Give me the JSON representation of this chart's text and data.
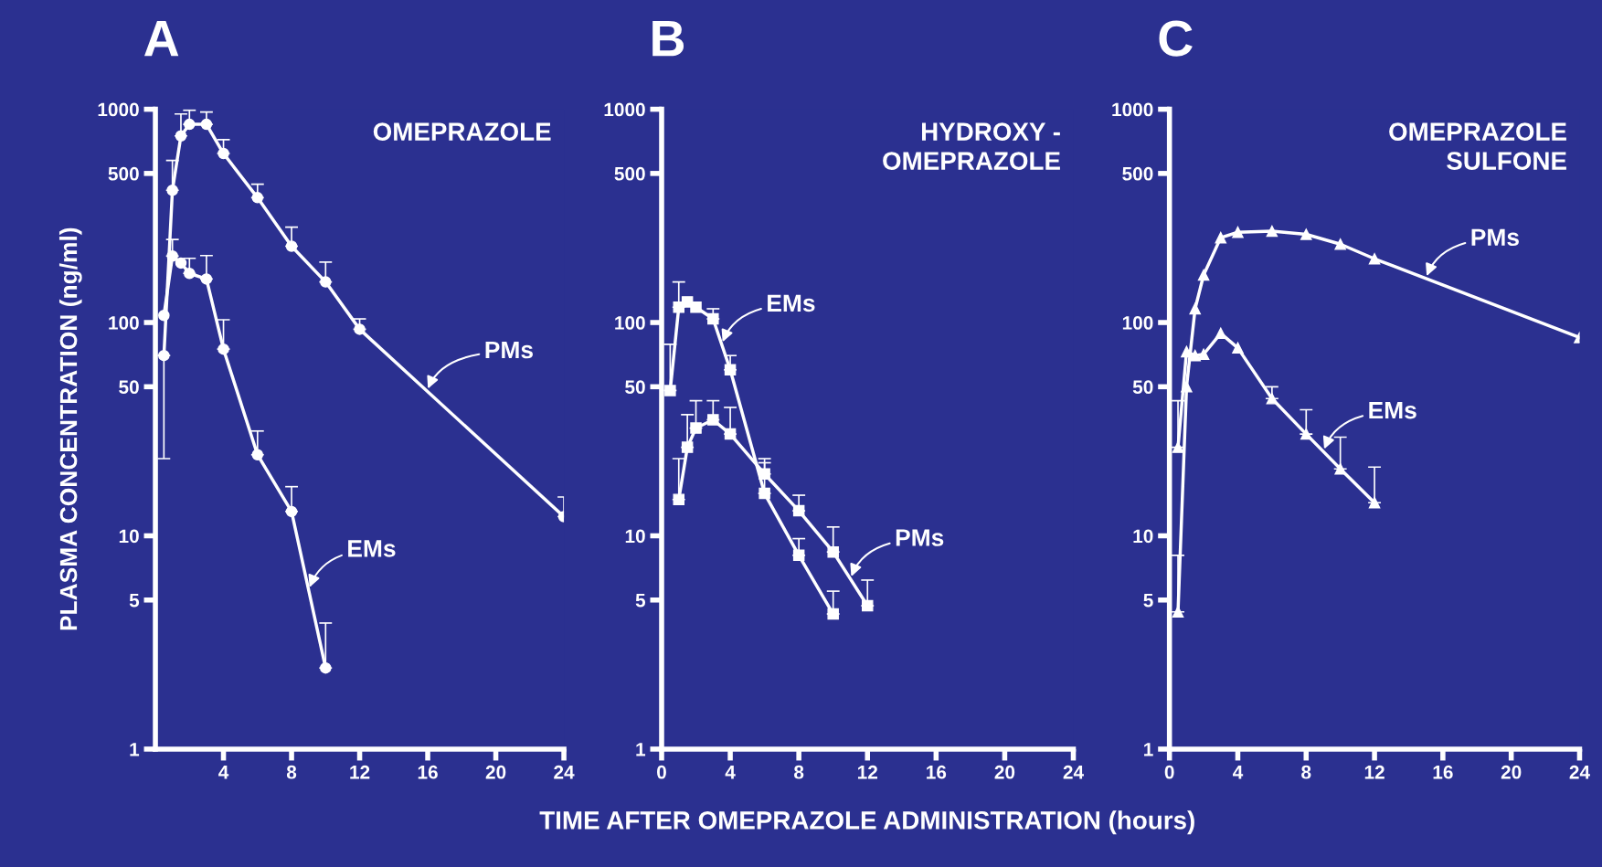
{
  "chart_data": [
    {
      "type": "line",
      "title": "A",
      "subtitle": "OMEPRAZOLE",
      "ylabel": "PLASMA CONCENTRATION (ng/ml)",
      "log": "y",
      "xlim": [
        0,
        24
      ],
      "xticks": [
        4,
        8,
        12,
        16,
        20,
        24
      ],
      "ylim": [
        1,
        1000
      ],
      "yticks": [
        1,
        5,
        10,
        50,
        100,
        500,
        1000
      ],
      "grid": false,
      "marker": "circle",
      "line_style": "solid",
      "series": [
        {
          "name": "PMs",
          "color": "#ffffff",
          "x": [
            0.5,
            1,
            1.5,
            2,
            3,
            4,
            6,
            8,
            10,
            12,
            24
          ],
          "values": [
            70,
            417,
            750,
            850,
            850,
            620,
            385,
            228,
            155,
            93,
            12.3
          ],
          "errors": [
            [
              23,
              70
            ],
            [
              417,
              575
            ],
            [
              750,
              950
            ],
            [
              850,
              990
            ],
            [
              850,
              970
            ],
            [
              620,
              720
            ],
            [
              385,
              445
            ],
            [
              228,
              280
            ],
            [
              155,
              192
            ],
            [
              93,
              104
            ],
            [
              12.3,
              15.2
            ]
          ]
        },
        {
          "name": "EMs",
          "color": "#ffffff",
          "x": [
            0.5,
            1,
            1.5,
            2,
            3,
            4,
            6,
            8,
            10
          ],
          "values": [
            108,
            205,
            190,
            170,
            160,
            75,
            24,
            13,
            2.4
          ],
          "errors": [
            null,
            [
              205,
              245
            ],
            null,
            [
              170,
              200
            ],
            [
              160,
              206
            ],
            [
              75,
              103
            ],
            [
              24,
              31
            ],
            [
              13,
              17
            ],
            [
              2.4,
              3.9
            ]
          ]
        }
      ]
    },
    {
      "type": "line",
      "title": "B",
      "subtitle": "HYDROXY -\nOMEPRAZOLE",
      "xlabel": "TIME AFTER OMEPRAZOLE ADMINISTRATION (hours)",
      "log": "y",
      "xlim": [
        0,
        24
      ],
      "xticks": [
        0,
        4,
        8,
        12,
        16,
        20,
        24
      ],
      "ylim": [
        1,
        1000
      ],
      "yticks": [
        1,
        5,
        10,
        50,
        100,
        500,
        1000
      ],
      "grid": false,
      "marker": "square",
      "line_style": "solid",
      "series": [
        {
          "name": "EMs",
          "color": "#ffffff",
          "x": [
            0.5,
            1,
            1.5,
            2,
            3,
            4,
            6,
            8,
            10
          ],
          "values": [
            48,
            118,
            125,
            118,
            104,
            60,
            15.8,
            8.1,
            4.3
          ],
          "errors": [
            [
              48,
              79
            ],
            [
              118,
              155
            ],
            null,
            null,
            [
              104,
              116
            ],
            [
              60,
              70
            ],
            [
              15.8,
              22
            ],
            [
              8.1,
              9.7
            ],
            [
              4.3,
              5.5
            ]
          ]
        },
        {
          "name": "PMs",
          "color": "#ffffff",
          "x": [
            1,
            1.5,
            2,
            3,
            4,
            6,
            8,
            10,
            12
          ],
          "values": [
            14.8,
            26,
            32,
            35,
            30,
            19.5,
            13.1,
            8.4,
            4.7
          ],
          "errors": [
            [
              14.8,
              23
            ],
            [
              26,
              37
            ],
            [
              32,
              43
            ],
            [
              35,
              43
            ],
            [
              30,
              40
            ],
            [
              19.5,
              23
            ],
            [
              13.1,
              15.5
            ],
            [
              8.4,
              11
            ],
            [
              4.7,
              6.2
            ]
          ]
        }
      ]
    },
    {
      "type": "line",
      "title": "C",
      "subtitle": "OMEPRAZOLE\nSULFONE",
      "log": "y",
      "xlim": [
        0,
        24
      ],
      "xticks": [
        0,
        4,
        8,
        12,
        16,
        20,
        24
      ],
      "ylim": [
        1,
        1000
      ],
      "yticks": [
        1,
        5,
        10,
        50,
        100,
        500,
        1000
      ],
      "grid": false,
      "marker": "triangle",
      "line_style": "solid",
      "series": [
        {
          "name": "PMs",
          "color": "#ffffff",
          "x": [
            0.5,
            1,
            1.5,
            2,
            3,
            4,
            6,
            8,
            10,
            12,
            24
          ],
          "values": [
            4.4,
            50,
            116,
            167,
            250,
            265,
            268,
            259,
            233,
            199,
            85
          ],
          "errors": [
            [
              4.4,
              8.1
            ],
            null,
            null,
            null,
            null,
            null,
            null,
            null,
            null,
            null,
            null
          ]
        },
        {
          "name": "EMs",
          "color": "#ffffff",
          "x": [
            0.5,
            1,
            1.5,
            2,
            3,
            4,
            6,
            8,
            10,
            12
          ],
          "values": [
            26,
            73,
            70,
            71,
            89,
            76,
            44,
            30,
            20.6,
            14.3
          ],
          "errors": [
            [
              26,
              43
            ],
            null,
            null,
            null,
            null,
            null,
            [
              44,
              50
            ],
            [
              30,
              39
            ],
            [
              20.6,
              29
            ],
            [
              14.3,
              21
            ]
          ]
        }
      ]
    }
  ]
}
